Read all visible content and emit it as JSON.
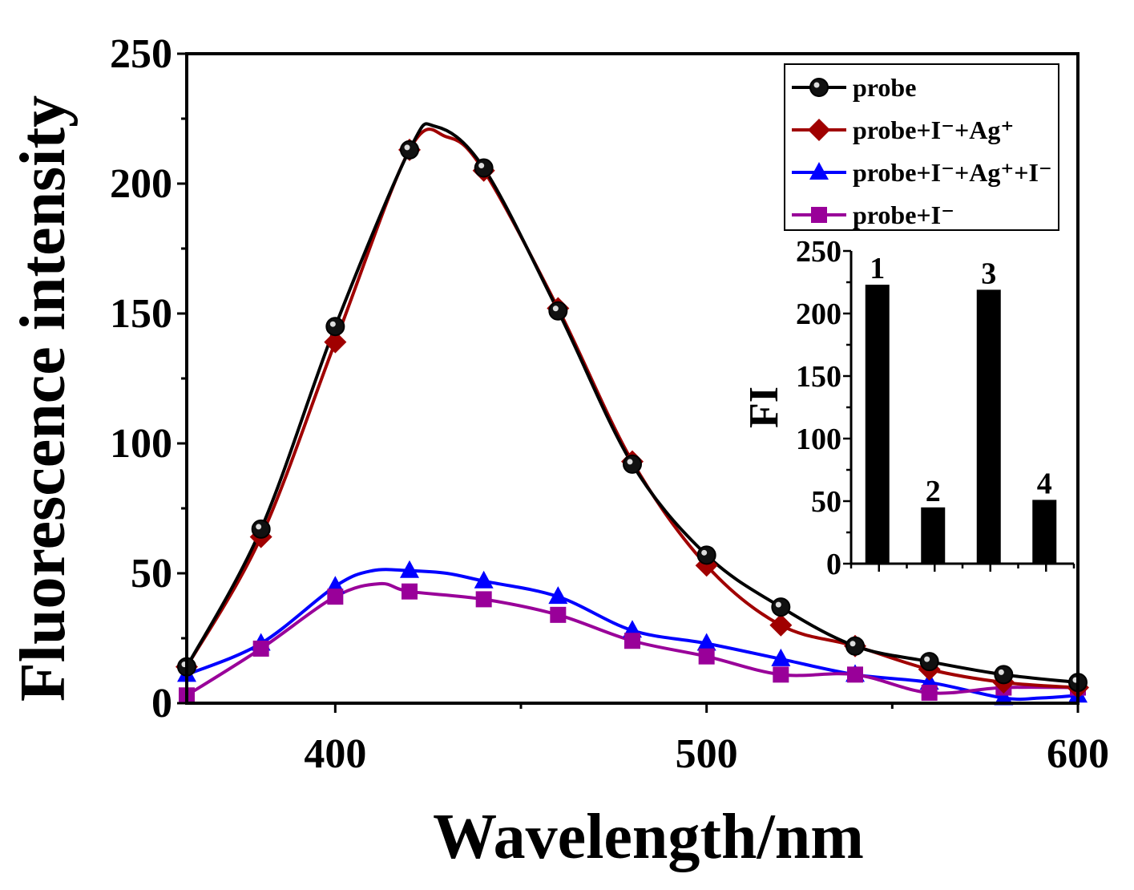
{
  "chart_data": [
    {
      "type": "line",
      "title": "",
      "xlabel": "Wavelength/nm",
      "ylabel": "Fluorescence intensity",
      "xlim": [
        360,
        600
      ],
      "ylim": [
        0,
        250
      ],
      "xticks": [
        400,
        500,
        600
      ],
      "yticks": [
        0,
        50,
        100,
        150,
        200,
        250
      ],
      "grid": false,
      "legend_position": "top-right",
      "series": [
        {
          "name": "probe",
          "color": "#000000",
          "marker": "sphere",
          "x": [
            360,
            380,
            400,
            420,
            427,
            440,
            460,
            480,
            500,
            520,
            540,
            560,
            580,
            600
          ],
          "y": [
            14,
            67,
            145,
            213,
            222,
            206,
            151,
            92,
            57,
            37,
            22,
            16,
            11,
            8
          ]
        },
        {
          "name": "probe+I⁻+Ag⁺",
          "color": "#a00000",
          "marker": "diamond",
          "x": [
            360,
            380,
            400,
            420,
            430,
            440,
            460,
            480,
            500,
            520,
            540,
            560,
            580,
            600
          ],
          "y": [
            14,
            64,
            139,
            213,
            218,
            205,
            152,
            93,
            53,
            30,
            22,
            13,
            8,
            6
          ]
        },
        {
          "name": "probe+I⁻+Ag⁺+I⁻",
          "color": "#0000ff",
          "marker": "triangle",
          "x": [
            360,
            380,
            400,
            410,
            420,
            430,
            440,
            460,
            480,
            500,
            520,
            540,
            560,
            580,
            590,
            600
          ],
          "y": [
            11,
            23,
            45,
            51,
            51,
            50,
            47,
            41,
            28,
            23,
            17,
            11,
            8,
            2,
            2,
            3
          ]
        },
        {
          "name": "probe+I⁻",
          "color": "#990099",
          "marker": "square",
          "x": [
            360,
            380,
            400,
            412,
            420,
            440,
            460,
            480,
            500,
            520,
            540,
            560,
            580,
            600
          ],
          "y": [
            3,
            21,
            41,
            46,
            43,
            40,
            34,
            24,
            18,
            11,
            11,
            4,
            6,
            6
          ]
        }
      ],
      "marker_x": [
        360,
        380,
        400,
        420,
        440,
        460,
        480,
        500,
        520,
        540,
        560,
        580,
        600
      ]
    },
    {
      "type": "bar",
      "title": "",
      "ylabel": "FI",
      "ylim": [
        0,
        250
      ],
      "yticks": [
        0,
        50,
        100,
        150,
        200,
        250
      ],
      "categories": [
        "1",
        "2",
        "3",
        "4"
      ],
      "values": [
        223,
        45,
        219,
        51
      ],
      "color": "#000000"
    }
  ]
}
